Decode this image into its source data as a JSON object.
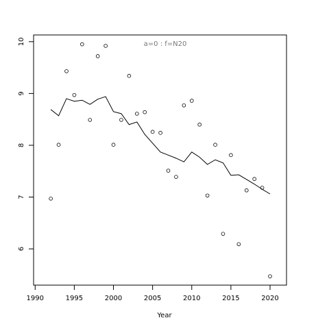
{
  "chart_data": {
    "type": "scatter",
    "annotation": "a=0  :  f=N20",
    "x_label": "Year",
    "x": [
      1992,
      1993,
      1994,
      1995,
      1996,
      1997,
      1998,
      1999,
      2000,
      2001,
      2002,
      2003,
      2004,
      2005,
      2006,
      2007,
      2008,
      2009,
      2010,
      2011,
      2012,
      2013,
      2014,
      2015,
      2016,
      2017,
      2018,
      2019,
      2020
    ],
    "series": [
      {
        "style": "points",
        "color": "#000000",
        "values": [
          6.97,
          8.01,
          9.43,
          8.97,
          9.95,
          8.49,
          9.72,
          9.92,
          8.01,
          8.49,
          9.34,
          8.61,
          8.64,
          8.26,
          8.24,
          7.51,
          7.39,
          8.77,
          8.86,
          8.4,
          7.03,
          8.01,
          6.29,
          7.81,
          6.09,
          7.13,
          7.35,
          7.18,
          5.47
        ]
      },
      {
        "style": "line",
        "color": "#000000",
        "values": [
          8.69,
          8.57,
          8.9,
          8.85,
          8.87,
          8.79,
          8.89,
          8.94,
          8.65,
          8.61,
          8.4,
          8.45,
          8.21,
          8.04,
          7.87,
          7.81,
          7.75,
          7.68,
          7.87,
          7.77,
          7.63,
          7.72,
          7.66,
          7.42,
          7.43,
          7.34,
          7.25,
          7.15,
          7.06
        ]
      }
    ],
    "xlim": [
      1989.8,
      2022.1
    ],
    "xticks": [
      1990,
      1995,
      2000,
      2005,
      2010,
      2015,
      2020
    ],
    "ylim": [
      5.3,
      10.13
    ],
    "yticks": [
      6,
      7,
      8,
      9,
      10
    ]
  }
}
